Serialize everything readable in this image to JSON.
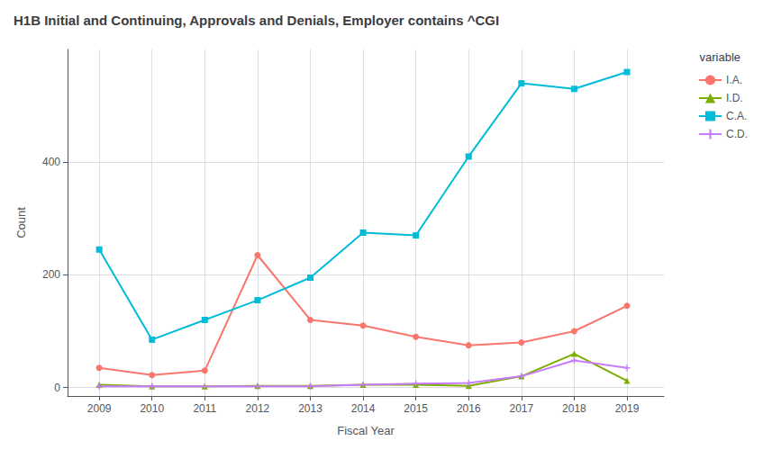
{
  "chart_data": {
    "type": "line",
    "title": "H1B Initial and Continuing, Approvals and Denials, Employer contains ^CGI",
    "xlabel": "Fiscal Year",
    "ylabel": "Count",
    "legend_title": "variable",
    "x": [
      2009,
      2010,
      2011,
      2012,
      2013,
      2014,
      2015,
      2016,
      2017,
      2018,
      2019
    ],
    "series": [
      {
        "name": "I.A.",
        "color": "#F8766D",
        "marker": "circle",
        "values": [
          35,
          22,
          30,
          235,
          120,
          110,
          90,
          75,
          80,
          100,
          145
        ]
      },
      {
        "name": "I.D.",
        "color": "#7CAE00",
        "marker": "triangle",
        "values": [
          5,
          2,
          2,
          3,
          3,
          5,
          5,
          3,
          20,
          60,
          12
        ]
      },
      {
        "name": "C.A.",
        "color": "#00BCD8",
        "marker": "square",
        "values": [
          245,
          85,
          120,
          155,
          195,
          275,
          270,
          410,
          540,
          530,
          560
        ]
      },
      {
        "name": "C.D.",
        "color": "#C77CFF",
        "marker": "plus",
        "values": [
          2,
          2,
          2,
          2,
          2,
          5,
          7,
          8,
          20,
          48,
          35
        ]
      }
    ],
    "xlim": [
      2008.4,
      2019.7
    ],
    "xticks": [
      2009,
      2010,
      2011,
      2012,
      2013,
      2014,
      2015,
      2016,
      2017,
      2018,
      2019
    ],
    "ylim": [
      -15,
      600
    ],
    "yticks": [
      0,
      200,
      400
    ],
    "grid": true,
    "legend": "right"
  }
}
